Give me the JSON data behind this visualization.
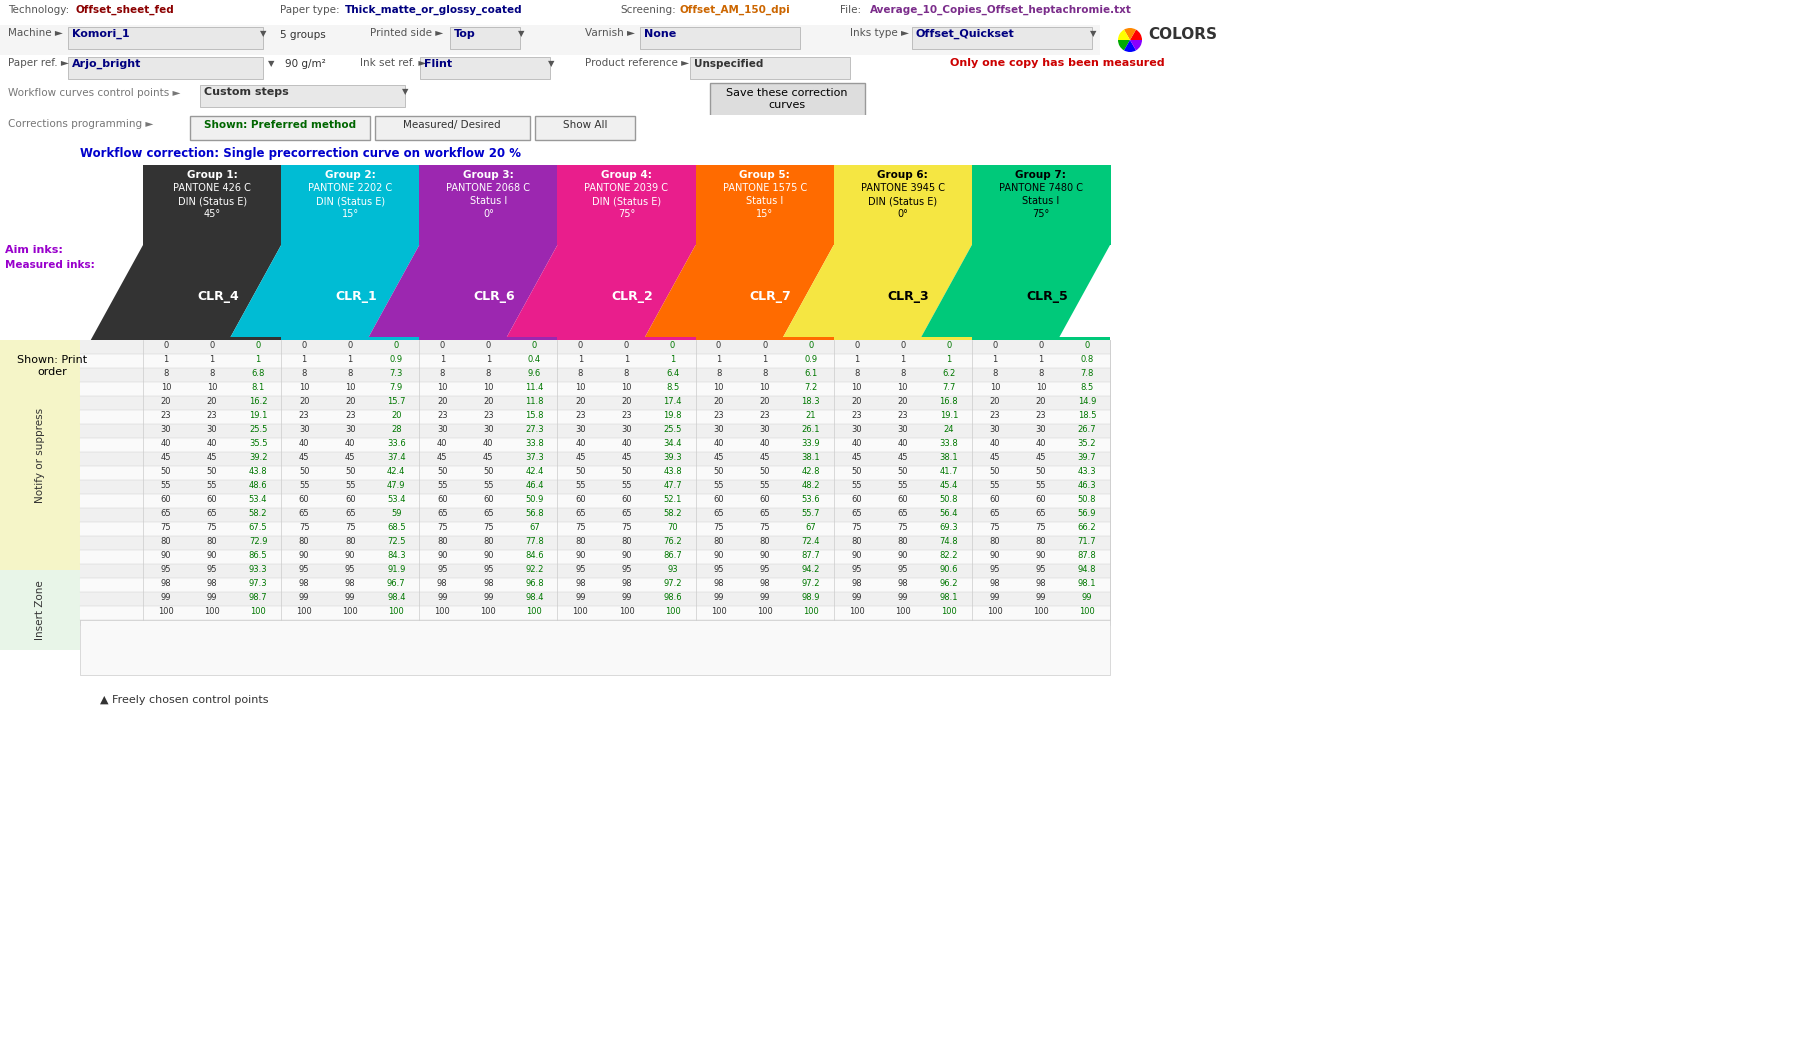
{
  "title_row": {
    "technology_label": "Technology:",
    "technology_value": "Offset_sheet_fed",
    "paper_type_label": "Paper type:",
    "paper_type_value": "Thick_matte_or_glossy_coated",
    "screening_label": "Screening:",
    "screening_value": "Offset_AM_150_dpi",
    "file_label": "File:",
    "file_value": "Average_10_Copies_Offset_heptachromie.txt"
  },
  "row2": {
    "machine_label": "Machine ►",
    "machine_value": "Komori_1",
    "groups_text": "5 groups",
    "printed_side_label": "Printed side ►",
    "printed_side_value": "Top",
    "varnish_label": "Varnish ►",
    "varnish_value": "None",
    "inks_type_label": "Inks type ►",
    "inks_type_value": "Offset_Quickset",
    "logo_text": "COLORS"
  },
  "row3": {
    "paper_ref_label": "Paper ref. ►",
    "paper_ref_value": "Arjo_bright",
    "paper_weight": "90 g/m²",
    "ink_set_label": "Ink set ref. ►",
    "ink_set_value": "Flint",
    "product_ref_label": "Product reference ►",
    "product_ref_value": "Unspecified",
    "warning": "Only one copy has been measured"
  },
  "row4": {
    "workflow_label": "Workflow curves control points ►",
    "workflow_value": "Custom steps",
    "save_button": "Save these correction\ncurves"
  },
  "row5": {
    "corrections_label": "Corrections programming ►",
    "button1": "Shown: Preferred method",
    "button2": "Measured/ Desired",
    "button3": "Show All"
  },
  "workflow_correction": "Workflow correction: Single precorrection curve on workflow 20 %",
  "aim_inks_label": "Aim inks:",
  "measured_inks_label": "Measured inks:",
  "shown_label": "Shown: Print\norder",
  "notify_suppress_label": "Notify or suppress",
  "insert_zone_label": "Insert Zone",
  "groups": [
    {
      "name": "Group 1:",
      "pantone": "PANTONE 426 C",
      "din": "DIN (Status E)",
      "angle": "45°",
      "clr": "CLR_4",
      "color": "#333333",
      "text_color": "#ffffff"
    },
    {
      "name": "Group 2:",
      "pantone": "PANTONE 2202 C",
      "din": "DIN (Status E)",
      "angle": "15°",
      "clr": "CLR_1",
      "color": "#00bcd4",
      "text_color": "#ffffff"
    },
    {
      "name": "Group 3:",
      "pantone": "PANTONE 2068 C",
      "din": "Status I",
      "angle": "0°",
      "clr": "CLR_6",
      "color": "#9c27b0",
      "text_color": "#ffffff"
    },
    {
      "name": "Group 4:",
      "pantone": "PANTONE 2039 C",
      "din": "DIN (Status E)",
      "angle": "75°",
      "clr": "CLR_2",
      "color": "#e91e8c",
      "text_color": "#ffffff"
    },
    {
      "name": "Group 5:",
      "pantone": "PANTONE 1575 C",
      "din": "Status I",
      "angle": "15°",
      "clr": "CLR_7",
      "color": "#ff6b00",
      "text_color": "#ffffff"
    },
    {
      "name": "Group 6:",
      "pantone": "PANTONE 3945 C",
      "din": "DIN (Status E)",
      "angle": "0°",
      "clr": "CLR_3",
      "color": "#f5e642",
      "text_color": "#000000"
    },
    {
      "name": "Group 7:",
      "pantone": "PANTONE 7480 C",
      "din": "Status I",
      "angle": "75°",
      "clr": "CLR_5",
      "color": "#00c97a",
      "text_color": "#000000"
    }
  ],
  "table_data": [
    [
      0.0,
      0,
      0,
      0,
      0,
      0,
      0,
      0,
      0,
      0,
      0,
      0,
      0,
      0,
      0,
      0,
      0,
      0,
      0,
      0,
      0
    ],
    [
      1.0,
      1.0,
      1.0,
      1.0,
      1.0,
      0.9,
      1.0,
      1.0,
      0.4,
      1.0,
      1.0,
      1.0,
      1.0,
      1.0,
      0.9,
      1.0,
      1.0,
      1.0,
      1.0,
      1.0,
      0.8
    ],
    [
      8.0,
      8.0,
      6.8,
      8.0,
      8.0,
      7.3,
      8.0,
      8.0,
      9.6,
      8.0,
      8.0,
      6.4,
      8.0,
      8.0,
      6.1,
      8.0,
      8.0,
      6.2,
      8.0,
      8.0,
      7.8
    ],
    [
      10.0,
      10.0,
      8.1,
      10.0,
      10.0,
      7.9,
      10.0,
      10.0,
      11.4,
      10.0,
      10.0,
      8.5,
      10.0,
      10.0,
      7.2,
      10.0,
      10.0,
      7.7,
      10.0,
      10.0,
      8.5
    ],
    [
      20.0,
      20.0,
      16.2,
      20.0,
      20.0,
      15.7,
      20.0,
      20.0,
      11.8,
      20.0,
      20.0,
      17.4,
      20.0,
      20.0,
      18.3,
      20.0,
      20.0,
      16.8,
      20.0,
      20.0,
      14.9
    ],
    [
      23.0,
      23.0,
      19.1,
      23.0,
      23.0,
      20.0,
      23.0,
      23.0,
      15.8,
      23.0,
      23.0,
      19.8,
      23.0,
      23.0,
      21.0,
      23.0,
      23.0,
      19.1,
      23.0,
      23.0,
      18.5
    ],
    [
      30.0,
      30.0,
      25.5,
      30.0,
      30.0,
      28.0,
      30.0,
      30.0,
      27.3,
      30.0,
      30.0,
      25.5,
      30.0,
      30.0,
      26.1,
      30.0,
      30.0,
      24.0,
      30.0,
      30.0,
      26.7
    ],
    [
      40.0,
      40.0,
      35.5,
      40.0,
      40.0,
      33.6,
      40.0,
      40.0,
      33.8,
      40.0,
      40.0,
      34.4,
      40.0,
      40.0,
      33.9,
      40.0,
      40.0,
      33.8,
      40.0,
      40.0,
      35.2
    ],
    [
      45.0,
      45.0,
      39.2,
      45.0,
      45.0,
      37.4,
      45.0,
      45.0,
      37.3,
      45.0,
      45.0,
      39.3,
      45.0,
      45.0,
      38.1,
      45.0,
      45.0,
      38.1,
      45.0,
      45.0,
      39.7
    ],
    [
      50.0,
      50.0,
      43.8,
      50.0,
      50.0,
      42.4,
      50.0,
      50.0,
      42.4,
      50.0,
      50.0,
      43.8,
      50.0,
      50.0,
      42.8,
      50.0,
      50.0,
      41.7,
      50.0,
      50.0,
      43.3
    ],
    [
      55.0,
      55.0,
      48.6,
      55.0,
      55.0,
      47.9,
      55.0,
      55.0,
      46.4,
      55.0,
      55.0,
      47.7,
      55.0,
      55.0,
      48.2,
      55.0,
      55.0,
      45.4,
      55.0,
      55.0,
      46.3
    ],
    [
      60.0,
      60.0,
      53.4,
      60.0,
      60.0,
      53.4,
      60.0,
      60.0,
      50.9,
      60.0,
      60.0,
      52.1,
      60.0,
      60.0,
      53.6,
      60.0,
      60.0,
      50.8,
      60.0,
      60.0,
      50.8
    ],
    [
      65.0,
      65.0,
      58.2,
      65.0,
      65.0,
      59.0,
      65.0,
      65.0,
      56.8,
      65.0,
      65.0,
      58.2,
      65.0,
      65.0,
      55.7,
      65.0,
      65.0,
      56.4,
      65.0,
      65.0,
      56.9
    ],
    [
      75.0,
      75.0,
      67.5,
      75.0,
      75.0,
      68.5,
      75.0,
      75.0,
      67.0,
      75.0,
      75.0,
      70.0,
      75.0,
      75.0,
      67.0,
      75.0,
      75.0,
      69.3,
      75.0,
      75.0,
      66.2
    ],
    [
      80.0,
      80.0,
      72.9,
      80.0,
      80.0,
      72.5,
      80.0,
      80.0,
      77.8,
      80.0,
      80.0,
      76.2,
      80.0,
      80.0,
      72.4,
      80.0,
      80.0,
      74.8,
      80.0,
      80.0,
      71.7
    ],
    [
      90.0,
      90.0,
      86.5,
      90.0,
      90.0,
      84.3,
      90.0,
      90.0,
      84.6,
      90.0,
      90.0,
      86.7,
      90.0,
      90.0,
      87.7,
      90.0,
      90.0,
      82.2,
      90.0,
      90.0,
      87.8
    ],
    [
      95.0,
      95.0,
      93.3,
      95.0,
      95.0,
      91.9,
      95.0,
      95.0,
      92.2,
      95.0,
      95.0,
      93.0,
      95.0,
      95.0,
      94.2,
      95.0,
      95.0,
      90.6,
      95.0,
      95.0,
      94.8
    ],
    [
      98.0,
      98.0,
      97.3,
      98.0,
      98.0,
      96.7,
      98.0,
      98.0,
      96.8,
      98.0,
      98.0,
      97.2,
      98.0,
      98.0,
      97.2,
      98.0,
      98.0,
      96.2,
      98.0,
      98.0,
      98.1
    ],
    [
      99.0,
      99.0,
      98.7,
      99.0,
      99.0,
      98.4,
      99.0,
      99.0,
      98.4,
      99.0,
      99.0,
      98.6,
      99.0,
      99.0,
      98.9,
      99.0,
      99.0,
      98.1,
      99.0,
      99.0,
      99.0
    ],
    [
      100.0,
      100.0,
      100.0,
      100.0,
      100.0,
      100.0,
      100.0,
      100.0,
      100.0,
      100.0,
      100.0,
      100.0,
      100.0,
      100.0,
      100.0,
      100.0,
      100.0,
      100.0,
      100.0,
      100.0,
      100.0
    ]
  ],
  "bg_color": "#ffffff",
  "header_bg": "#f0f0f0",
  "table_light_bg": "#fafaf0",
  "notify_bg": "#f5f5c8",
  "insert_bg": "#e8f5e8"
}
